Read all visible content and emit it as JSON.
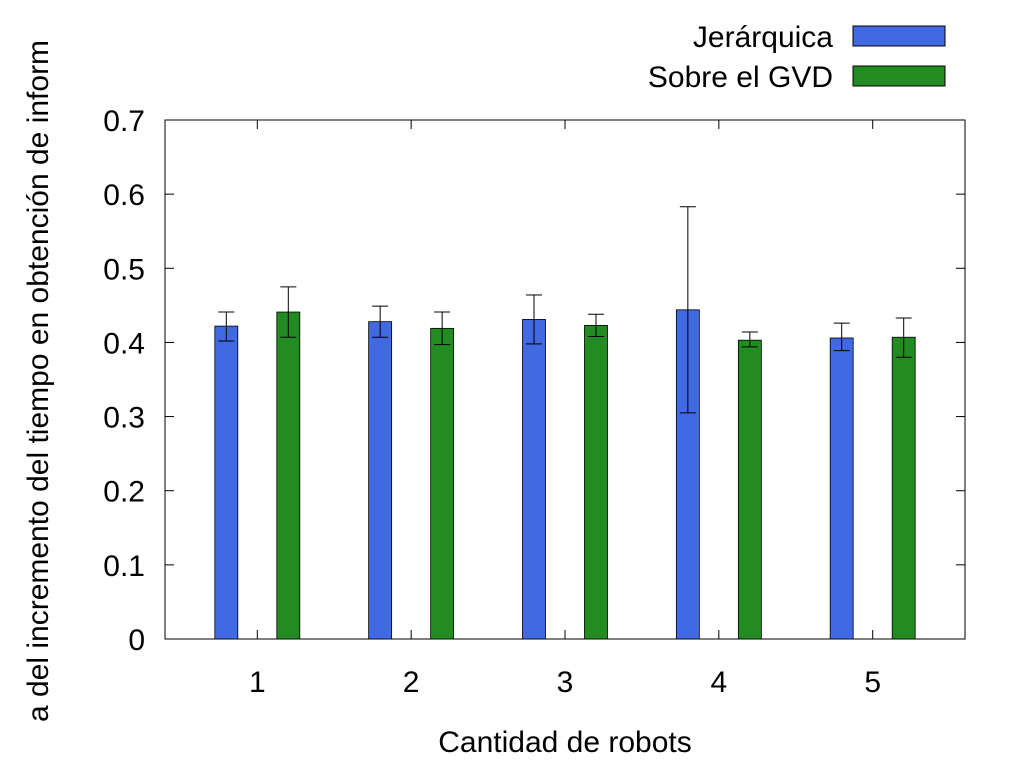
{
  "chart_data": {
    "type": "bar",
    "title": "",
    "xlabel": "Cantidad de robots",
    "ylabel": "a del incremento del tiempo en obtención de inform",
    "categories": [
      "1",
      "2",
      "3",
      "4",
      "5"
    ],
    "ylim": [
      0,
      0.7
    ],
    "yticks": [
      "0",
      "0.1",
      "0.2",
      "0.3",
      "0.4",
      "0.5",
      "0.6",
      "0.7"
    ],
    "grid": false,
    "legend_position": "top-right",
    "series": [
      {
        "name": "Jerárquica",
        "color": "#4169e1",
        "values": [
          0.422,
          0.428,
          0.431,
          0.444,
          0.406
        ],
        "err_low": [
          0.402,
          0.407,
          0.398,
          0.305,
          0.389
        ],
        "err_high": [
          0.441,
          0.449,
          0.464,
          0.583,
          0.426
        ]
      },
      {
        "name": "Sobre el GVD",
        "color": "#228b22",
        "values": [
          0.441,
          0.419,
          0.423,
          0.403,
          0.407
        ],
        "err_low": [
          0.407,
          0.397,
          0.408,
          0.394,
          0.38
        ],
        "err_high": [
          0.475,
          0.441,
          0.438,
          0.414,
          0.433
        ]
      }
    ]
  }
}
